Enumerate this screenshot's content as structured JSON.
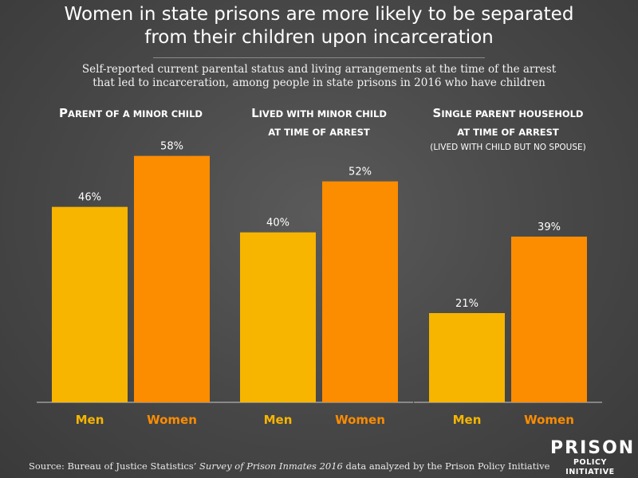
{
  "title_line1": "Women in state prisons are more likely to be separated",
  "title_line2": "from their children upon incarceration",
  "subtitle_line1": "Self-reported current parental status and living arrangements at the time of the arrest",
  "subtitle_line2": "that led to incarceration, among people in state prisons in 2016 who have children",
  "source_prefix": "Source: Bureau of Justice Statistics’ ",
  "source_italic": "Survey of Prison Inmates 2016",
  "source_suffix": " data analyzed by the Prison Policy Initiative",
  "logo": {
    "line1": "PRISON",
    "line2": "POLICY INITIATIVE"
  },
  "colors": {
    "men": "#f7b500",
    "women": "#fc8c00",
    "men_label": "#f7b500",
    "women_label": "#fc8c00",
    "axis": "#c8c8c8"
  },
  "chart_data": {
    "type": "bar",
    "categories": [
      "Men",
      "Women"
    ],
    "ylim": [
      0,
      60
    ],
    "value_suffix": "%",
    "panels": [
      {
        "title_lines": [
          "Parent of a minor child"
        ],
        "note": "",
        "values": [
          46,
          58
        ]
      },
      {
        "title_lines": [
          "Lived with minor child",
          "at time of arrest"
        ],
        "note": "",
        "values": [
          40,
          52
        ]
      },
      {
        "title_lines": [
          "Single parent household",
          "at time of arrest"
        ],
        "note": "(lived with child but no spouse)",
        "values": [
          21,
          39
        ]
      }
    ]
  }
}
